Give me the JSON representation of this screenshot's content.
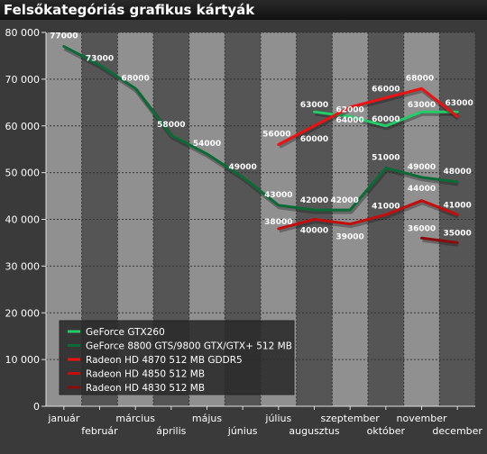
{
  "chart_data": {
    "type": "line",
    "title": "Felsőkategóriás grafikus kártyák",
    "xlabel": "",
    "ylabel": "",
    "ylim": [
      0,
      80000
    ],
    "yticks": [
      0,
      10000,
      20000,
      30000,
      40000,
      50000,
      60000,
      70000,
      80000
    ],
    "ytick_labels": [
      "0",
      "10 000",
      "20 000",
      "30 000",
      "40 000",
      "50 000",
      "60 000",
      "70 000",
      "80 000"
    ],
    "categories": [
      "január",
      "február",
      "március",
      "április",
      "május",
      "június",
      "július",
      "augusztus",
      "szeptember",
      "október",
      "november",
      "december"
    ],
    "grid": true,
    "legend_position": "bottom-left",
    "series": [
      {
        "name": "GeForce GTX260",
        "color": "#22cc66",
        "values": [
          null,
          null,
          null,
          null,
          null,
          null,
          null,
          63000,
          62000,
          60000,
          63000,
          63000
        ],
        "labels": [
          null,
          null,
          null,
          null,
          null,
          null,
          null,
          "63000",
          "62000",
          "60000",
          "63000",
          "63000"
        ]
      },
      {
        "name": "GeForce 8800 GTS/9800 GTX/GTX+ 512 MB",
        "color": "#0b6b36",
        "values": [
          77000,
          73000,
          68000,
          58000,
          54000,
          49000,
          43000,
          42000,
          42000,
          51000,
          49000,
          48000
        ],
        "labels": [
          "77000",
          "73000",
          "68000",
          "58000",
          "54000",
          "49000",
          "43000",
          "42000",
          "42000",
          "51000",
          "49000",
          "48000"
        ]
      },
      {
        "name": "Radeon HD 4870 512 MB GDDR5",
        "color": "#ee1111",
        "values": [
          null,
          null,
          null,
          null,
          null,
          null,
          56000,
          60000,
          64000,
          66000,
          68000,
          62000
        ],
        "labels": [
          null,
          null,
          null,
          null,
          null,
          null,
          "56000",
          "60000",
          "64000",
          "66000",
          "68000",
          null
        ]
      },
      {
        "name": "Radeon HD 4850 512 MB",
        "color": "#c40d0d",
        "values": [
          null,
          null,
          null,
          null,
          null,
          null,
          38000,
          40000,
          39000,
          41000,
          44000,
          41000
        ],
        "labels": [
          null,
          null,
          null,
          null,
          null,
          null,
          "38000",
          "40000",
          "39000",
          "41000",
          "44000",
          "41000"
        ]
      },
      {
        "name": "Radeon HD 4830 512 MB",
        "color": "#8a0c0c",
        "values": [
          null,
          null,
          null,
          null,
          null,
          null,
          null,
          null,
          null,
          null,
          36000,
          35000
        ],
        "labels": [
          null,
          null,
          null,
          null,
          null,
          null,
          null,
          null,
          null,
          null,
          "36000",
          "35000"
        ]
      }
    ]
  }
}
